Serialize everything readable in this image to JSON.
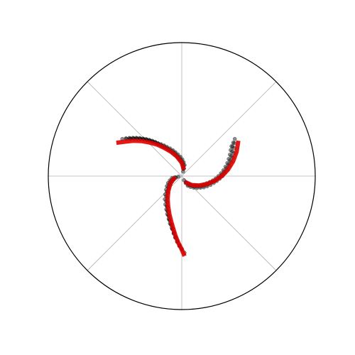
{
  "chart_data": {
    "type": "scatter",
    "coordinate_system": "polar",
    "title": "",
    "r_range": [
      0,
      1
    ],
    "angle_gridlines_deg": [
      0,
      45,
      90,
      135,
      180,
      225,
      270,
      315
    ],
    "radial_grid": false,
    "tick_labels": "none",
    "colors": {
      "points": "#000000",
      "arms": "#dd0000",
      "grid": "#b0b0b0",
      "frame": "#000000"
    },
    "point_alpha": 0.45,
    "series": [
      {
        "role": "points",
        "spiral": "upper-left",
        "points": [
          [
            0.06,
            74
          ],
          [
            0.08,
            80
          ],
          [
            0.1,
            86
          ],
          [
            0.12,
            92
          ],
          [
            0.14,
            98
          ],
          [
            0.16,
            103
          ],
          [
            0.18,
            107
          ],
          [
            0.2,
            111
          ],
          [
            0.22,
            115
          ],
          [
            0.24,
            118
          ],
          [
            0.26,
            121
          ],
          [
            0.28,
            124
          ],
          [
            0.3,
            126
          ],
          [
            0.32,
            128
          ],
          [
            0.34,
            130
          ],
          [
            0.36,
            132
          ],
          [
            0.38,
            134
          ],
          [
            0.4,
            136
          ],
          [
            0.42,
            138
          ],
          [
            0.44,
            140
          ],
          [
            0.46,
            142
          ],
          [
            0.48,
            144
          ],
          [
            0.5,
            146
          ]
        ]
      },
      {
        "role": "points",
        "spiral": "right",
        "points": [
          [
            0.06,
            300
          ],
          [
            0.08,
            307
          ],
          [
            0.1,
            314
          ],
          [
            0.12,
            320
          ],
          [
            0.14,
            326
          ],
          [
            0.16,
            331
          ],
          [
            0.18,
            336
          ],
          [
            0.2,
            341
          ],
          [
            0.22,
            346
          ],
          [
            0.24,
            350
          ],
          [
            0.26,
            354
          ],
          [
            0.28,
            358
          ],
          [
            0.3,
            2
          ],
          [
            0.32,
            6
          ],
          [
            0.34,
            10
          ],
          [
            0.36,
            14
          ],
          [
            0.38,
            18
          ],
          [
            0.4,
            22
          ],
          [
            0.42,
            26
          ],
          [
            0.44,
            30
          ],
          [
            0.46,
            33
          ]
        ]
      },
      {
        "role": "points",
        "spiral": "lower",
        "points": [
          [
            0.05,
            190
          ],
          [
            0.07,
            198
          ],
          [
            0.09,
            205
          ],
          [
            0.11,
            212
          ],
          [
            0.13,
            219
          ],
          [
            0.16,
            226
          ],
          [
            0.19,
            232
          ],
          [
            0.22,
            238
          ],
          [
            0.25,
            243
          ],
          [
            0.28,
            247
          ],
          [
            0.31,
            251
          ],
          [
            0.34,
            254
          ],
          [
            0.37,
            257
          ],
          [
            0.4,
            260
          ],
          [
            0.43,
            262
          ],
          [
            0.46,
            264
          ],
          [
            0.49,
            266
          ],
          [
            0.52,
            268
          ],
          [
            0.55,
            270
          ]
        ]
      },
      {
        "role": "fit",
        "spiral": "upper-left",
        "points": [
          [
            0.05,
            72
          ],
          [
            0.1,
            90
          ],
          [
            0.15,
            104
          ],
          [
            0.2,
            114
          ],
          [
            0.25,
            122
          ],
          [
            0.3,
            128
          ],
          [
            0.35,
            134
          ],
          [
            0.4,
            139
          ],
          [
            0.45,
            144
          ],
          [
            0.5,
            149
          ],
          [
            0.55,
            153
          ]
        ]
      },
      {
        "role": "fit",
        "spiral": "right",
        "points": [
          [
            0.05,
            298
          ],
          [
            0.1,
            318
          ],
          [
            0.15,
            332
          ],
          [
            0.2,
            343
          ],
          [
            0.25,
            352
          ],
          [
            0.3,
            0
          ],
          [
            0.35,
            8
          ],
          [
            0.4,
            16
          ],
          [
            0.45,
            24
          ],
          [
            0.5,
            32
          ]
        ]
      },
      {
        "role": "fit",
        "spiral": "lower",
        "points": [
          [
            0.05,
            188
          ],
          [
            0.1,
            212
          ],
          [
            0.15,
            228
          ],
          [
            0.2,
            238
          ],
          [
            0.25,
            246
          ],
          [
            0.3,
            252
          ],
          [
            0.35,
            257
          ],
          [
            0.4,
            261
          ],
          [
            0.45,
            264
          ],
          [
            0.5,
            267
          ],
          [
            0.55,
            270
          ],
          [
            0.6,
            272
          ]
        ]
      }
    ]
  }
}
